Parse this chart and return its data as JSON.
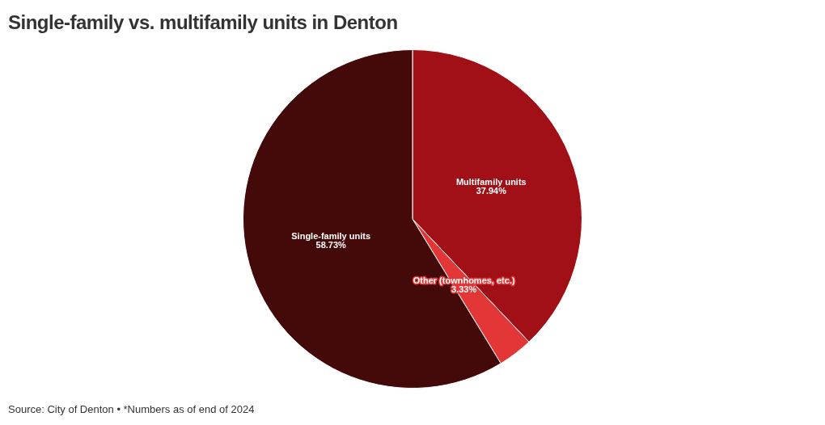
{
  "chart_data": {
    "type": "pie",
    "title": "Single-family vs. multifamily units in Denton",
    "categories": [
      "Multifamily units",
      "Other (townhomes, etc.)",
      "Single-family units"
    ],
    "values": [
      37.94,
      3.33,
      58.73
    ],
    "colors": [
      "#a01016",
      "#e33636",
      "#440a0a"
    ],
    "value_labels": [
      "37.94%",
      "3.33%",
      "58.73%"
    ],
    "legend": false,
    "annotations": [
      "Source: City of Denton • *Numbers as of end of 2024"
    ]
  }
}
